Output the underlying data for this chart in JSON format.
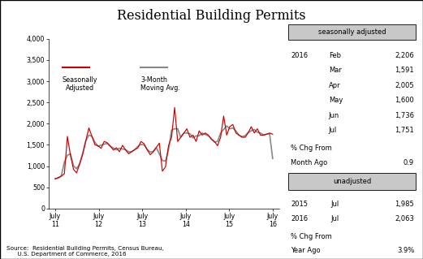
{
  "title": "Residential Building Permits",
  "source_text": "Source:  Residential Building Permits, Census Bureau,\n      U.S. Department of Commerce, 2016",
  "seasonally_adjusted_label": "Seasonally\nAdjusted",
  "moving_avg_label": "3-Month\nMoving Avg.",
  "ylim": [
    0,
    4000
  ],
  "yticks": [
    0,
    500,
    1000,
    1500,
    2000,
    2500,
    3000,
    3500,
    4000
  ],
  "ytick_labels": [
    "0",
    "500",
    "1,000",
    "1,500",
    "2,000",
    "2,500",
    "3,000",
    "3,500",
    "4,000"
  ],
  "xtick_labels": [
    "July\n11",
    "July\n12",
    "July\n13",
    "July\n14",
    "July\n15",
    "July\n16"
  ],
  "sa_color": "#cc0000",
  "ma_color": "#888888",
  "sidebar_sa": {
    "header": "seasonally adjusted",
    "year": "2016",
    "months": [
      "Feb",
      "Mar",
      "Apr",
      "May",
      "Jun",
      "Jul"
    ],
    "values": [
      "2,206",
      "1,591",
      "2,005",
      "1,600",
      "1,736",
      "1,751"
    ],
    "pct_label1": "% Chg From",
    "pct_label2": "Month Ago",
    "pct_value": "0.9"
  },
  "sidebar_un": {
    "header": "unadjusted",
    "rows": [
      [
        "2015",
        "Jul",
        "1,985"
      ],
      [
        "2016",
        "Jul",
        "2,063"
      ]
    ],
    "pct_label1": "% Chg From",
    "pct_label2": "Year Ago",
    "pct_value": "3.9%"
  },
  "sa_data": [
    700,
    730,
    760,
    820,
    1700,
    1250,
    920,
    840,
    1050,
    1280,
    1600,
    1900,
    1700,
    1500,
    1480,
    1420,
    1580,
    1550,
    1470,
    1380,
    1430,
    1340,
    1490,
    1380,
    1290,
    1340,
    1390,
    1430,
    1580,
    1530,
    1390,
    1270,
    1330,
    1440,
    1540,
    880,
    980,
    1480,
    1680,
    2380,
    1580,
    1680,
    1780,
    1880,
    1680,
    1730,
    1580,
    1830,
    1730,
    1780,
    1730,
    1630,
    1580,
    1480,
    1680,
    2180,
    1730,
    1930,
    1980,
    1780,
    1730,
    1680,
    1680,
    1780,
    1930,
    1780,
    1880,
    1730,
    1730,
    1750,
    1780,
    1750
  ]
}
